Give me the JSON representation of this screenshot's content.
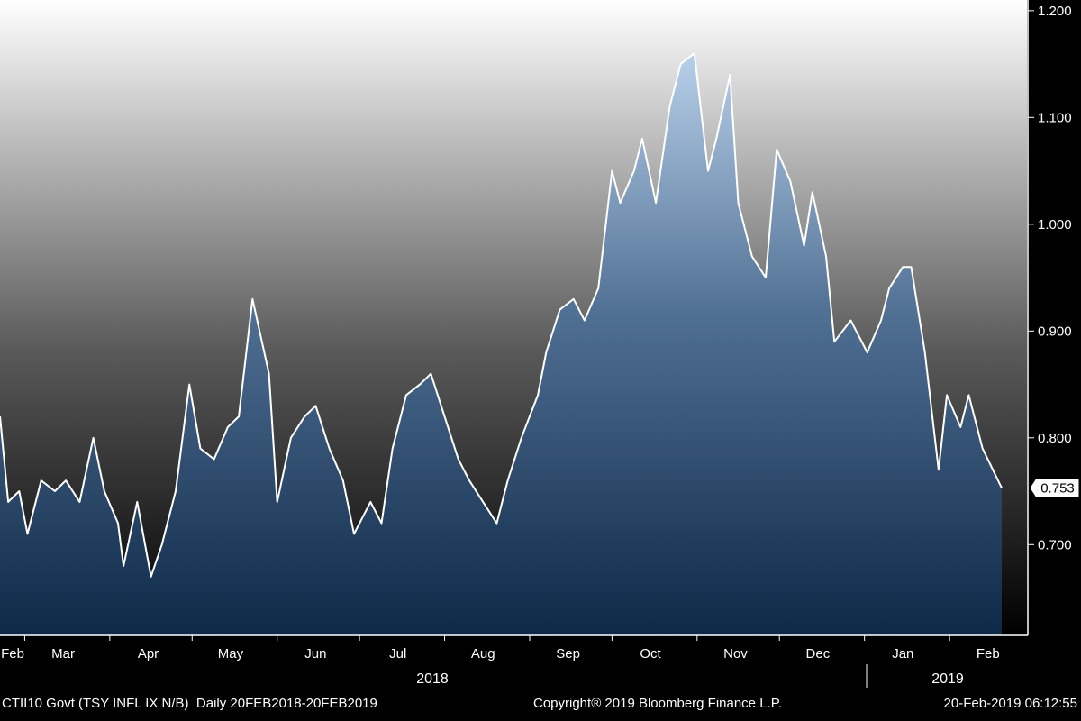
{
  "footer": {
    "security": "CTII10 Govt (TSY INFL IX N/B)",
    "range": "Daily 20FEB2018-20FEB2019",
    "copyright": "Copyright® 2019 Bloomberg Finance L.P.",
    "timestamp": "20-Feb-2019 06:12:55"
  },
  "colors": {
    "line": "#ffffff",
    "area_top": "#b8d0ea",
    "area_bottom": "#0e2847",
    "background_top": "#ffffff",
    "background_bottom": "#000000"
  },
  "chart_data": {
    "type": "area",
    "title": "",
    "xlabel": "",
    "ylabel": "",
    "ylim": [
      0.615,
      1.21
    ],
    "yticks": [
      0.7,
      0.8,
      0.9,
      1.0,
      1.1,
      1.2
    ],
    "ytick_labels": [
      "0.700",
      "0.800",
      "0.900",
      "1.000",
      "1.100",
      "1.200"
    ],
    "last_value_label": "0.753",
    "last_value": 0.753,
    "x_months": [
      "Feb",
      "Mar",
      "Apr",
      "May",
      "Jun",
      "Jul",
      "Aug",
      "Sep",
      "Oct",
      "Nov",
      "Dec",
      "Jan",
      "Feb"
    ],
    "x_years": [
      "2018",
      "2019"
    ],
    "grid": false,
    "x": [
      "2018-02-20",
      "2018-02-23",
      "2018-02-27",
      "2018-03-02",
      "2018-03-07",
      "2018-03-12",
      "2018-03-16",
      "2018-03-21",
      "2018-03-26",
      "2018-03-30",
      "2018-04-04",
      "2018-04-06",
      "2018-04-11",
      "2018-04-16",
      "2018-04-20",
      "2018-04-25",
      "2018-04-30",
      "2018-05-04",
      "2018-05-09",
      "2018-05-14",
      "2018-05-18",
      "2018-05-23",
      "2018-05-29",
      "2018-06-01",
      "2018-06-06",
      "2018-06-11",
      "2018-06-15",
      "2018-06-20",
      "2018-06-25",
      "2018-06-29",
      "2018-07-05",
      "2018-07-09",
      "2018-07-13",
      "2018-07-18",
      "2018-07-23",
      "2018-07-27",
      "2018-08-01",
      "2018-08-06",
      "2018-08-10",
      "2018-08-15",
      "2018-08-20",
      "2018-08-24",
      "2018-08-29",
      "2018-09-04",
      "2018-09-07",
      "2018-09-12",
      "2018-09-17",
      "2018-09-21",
      "2018-09-26",
      "2018-10-01",
      "2018-10-04",
      "2018-10-09",
      "2018-10-12",
      "2018-10-17",
      "2018-10-22",
      "2018-10-26",
      "2018-10-31",
      "2018-11-05",
      "2018-11-08",
      "2018-11-13",
      "2018-11-16",
      "2018-11-21",
      "2018-11-26",
      "2018-11-30",
      "2018-12-05",
      "2018-12-10",
      "2018-12-13",
      "2018-12-18",
      "2018-12-21",
      "2018-12-27",
      "2019-01-02",
      "2019-01-07",
      "2019-01-10",
      "2019-01-15",
      "2019-01-18",
      "2019-01-23",
      "2019-01-28",
      "2019-01-31",
      "2019-02-05",
      "2019-02-08",
      "2019-02-13",
      "2019-02-20"
    ],
    "series": [
      {
        "values": [
          0.82,
          0.74,
          0.75,
          0.71,
          0.76,
          0.75,
          0.76,
          0.74,
          0.8,
          0.75,
          0.72,
          0.68,
          0.74,
          0.67,
          0.7,
          0.75,
          0.85,
          0.79,
          0.78,
          0.81,
          0.82,
          0.93,
          0.86,
          0.74,
          0.8,
          0.82,
          0.83,
          0.79,
          0.76,
          0.71,
          0.74,
          0.72,
          0.79,
          0.84,
          0.85,
          0.86,
          0.82,
          0.78,
          0.76,
          0.74,
          0.72,
          0.76,
          0.8,
          0.84,
          0.88,
          0.92,
          0.93,
          0.91,
          0.94,
          1.05,
          1.02,
          1.05,
          1.08,
          1.02,
          1.11,
          1.15,
          1.16,
          1.05,
          1.08,
          1.14,
          1.02,
          0.97,
          0.95,
          1.07,
          1.04,
          0.98,
          1.03,
          0.97,
          0.89,
          0.91,
          0.88,
          0.91,
          0.94,
          0.96,
          0.96,
          0.88,
          0.77,
          0.84,
          0.81,
          0.84,
          0.79,
          0.753
        ]
      }
    ]
  }
}
